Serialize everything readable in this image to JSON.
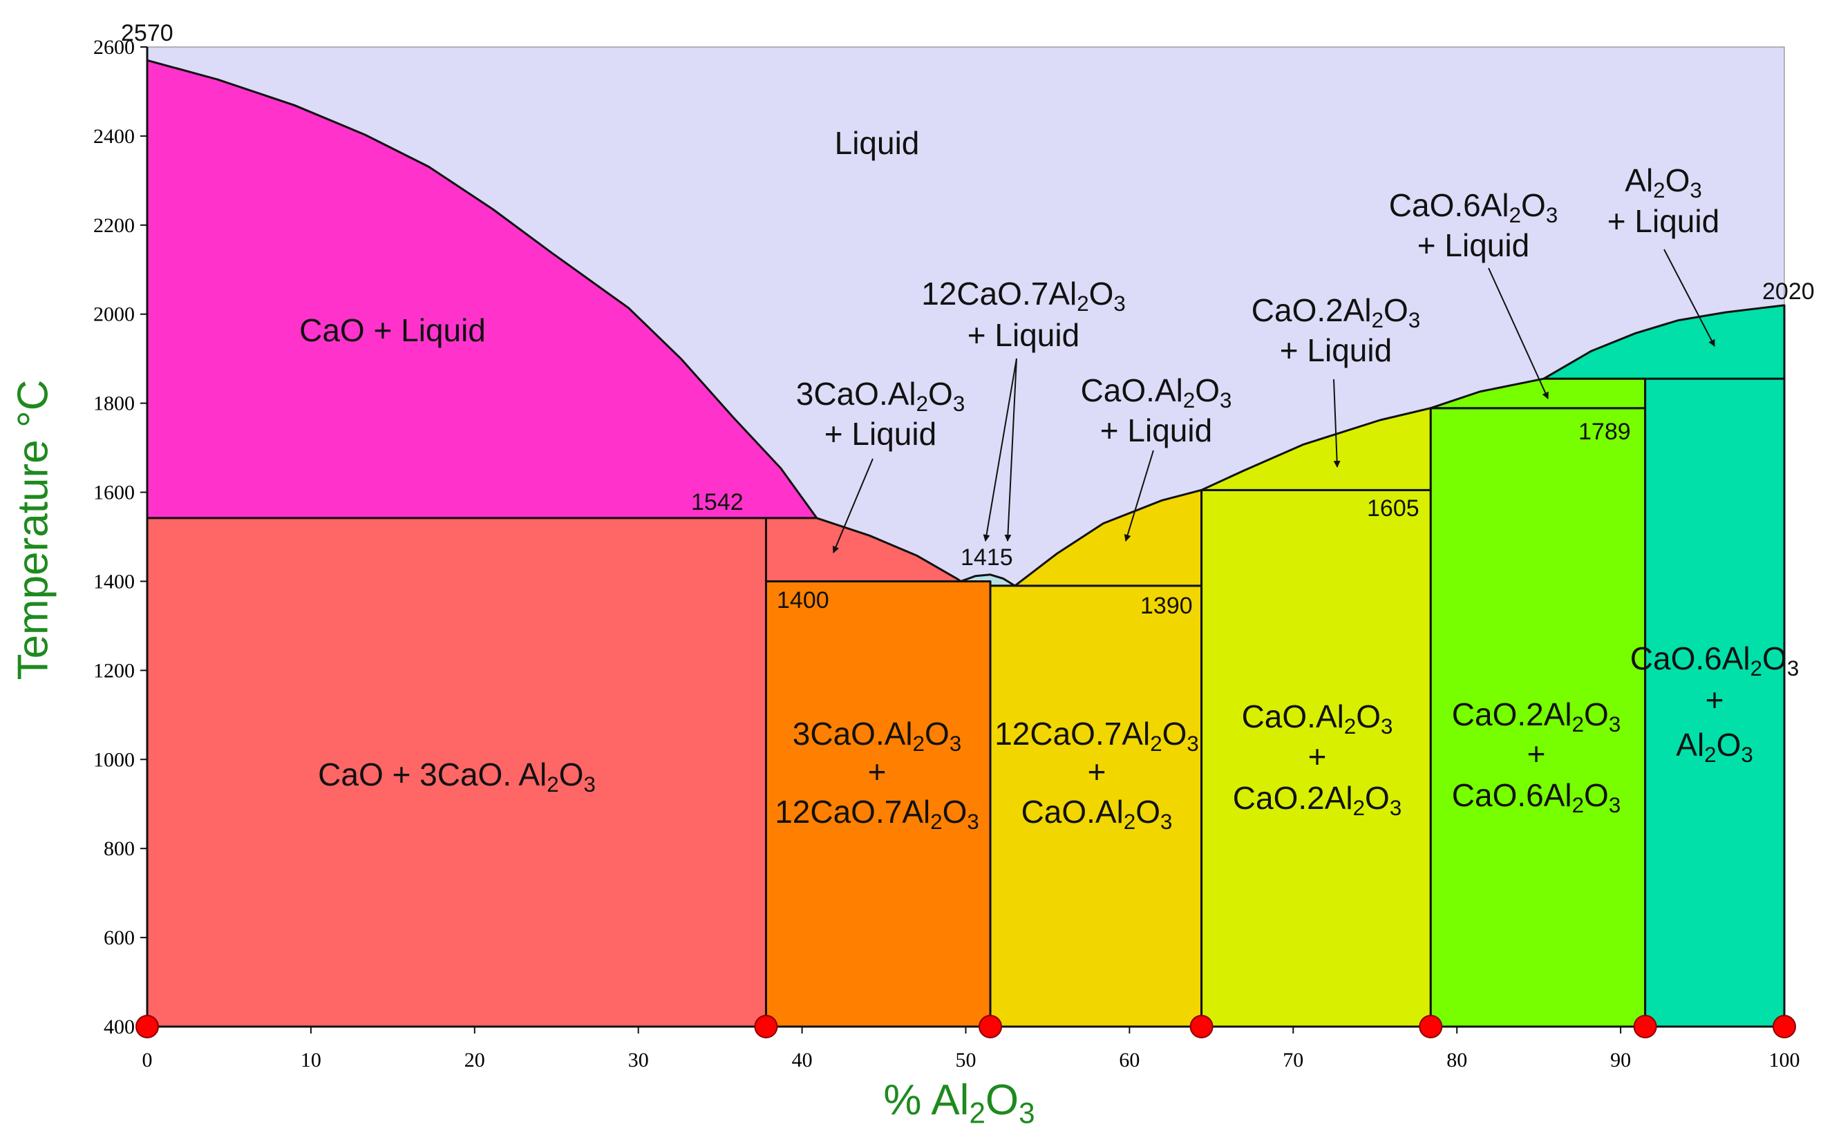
{
  "chart_data": {
    "type": "area",
    "title": "",
    "xlabel": "% Al2O3",
    "ylabel": "Temperature °C",
    "xlim": [
      0,
      100
    ],
    "ylim": [
      400,
      2600
    ],
    "xticks": [
      0,
      10,
      20,
      30,
      40,
      50,
      60,
      70,
      80,
      90,
      100
    ],
    "yticks": [
      400,
      600,
      800,
      1000,
      1200,
      1400,
      1600,
      1800,
      2000,
      2200,
      2400,
      2600
    ],
    "colors": {
      "liquid": "#dcdcf8",
      "cao_liquid": "#ff33cc",
      "cao_c3a": "#ff6666",
      "c3a_c12a7": "#ff8000",
      "c12a7_liquid": "#b8e0e8",
      "c12a7_ca": "#f2d600",
      "ca_ca2": "#d8f000",
      "ca2_ca6": "#77ff00",
      "ca6_al2o3": "#00e0a8",
      "marker": "#ff0000",
      "axis_title": "#1e8a1e"
    },
    "regions": [
      {
        "id": "cao_liquid",
        "color_key": "cao_liquid",
        "points": [
          [
            0,
            2570
          ],
          [
            4.3,
            2527
          ],
          [
            9,
            2469
          ],
          [
            13.3,
            2403
          ],
          [
            17.2,
            2331
          ],
          [
            21.1,
            2236
          ],
          [
            24.7,
            2138
          ],
          [
            29.4,
            2014
          ],
          [
            32.6,
            1900
          ],
          [
            35.8,
            1768
          ],
          [
            38.7,
            1654
          ],
          [
            40.9,
            1542
          ],
          [
            0,
            1542
          ]
        ]
      },
      {
        "id": "cao_c3a",
        "color_key": "cao_c3a",
        "points": [
          [
            0,
            1542
          ],
          [
            37.8,
            1542
          ],
          [
            37.8,
            400
          ],
          [
            0,
            400
          ]
        ]
      },
      {
        "id": "c3a_liquid",
        "color_key": "cao_c3a",
        "points": [
          [
            37.8,
            1542
          ],
          [
            40.9,
            1542
          ],
          [
            44.1,
            1503
          ],
          [
            47,
            1458
          ],
          [
            49.5,
            1405
          ],
          [
            49.7,
            1400
          ],
          [
            37.8,
            1400
          ]
        ]
      },
      {
        "id": "c3a_c12a7",
        "color_key": "c3a_c12a7",
        "points": [
          [
            37.8,
            1400
          ],
          [
            51.5,
            1400
          ],
          [
            51.5,
            400
          ],
          [
            37.8,
            400
          ]
        ]
      },
      {
        "id": "c12a7_liquid",
        "color_key": "c12a7_liquid",
        "points": [
          [
            49.7,
            1400
          ],
          [
            50.6,
            1412
          ],
          [
            51.5,
            1415
          ],
          [
            52.3,
            1406
          ],
          [
            53,
            1390
          ],
          [
            51.5,
            1390
          ],
          [
            51.5,
            1400
          ]
        ]
      },
      {
        "id": "c12a7_ca",
        "color_key": "c12a7_ca",
        "points": [
          [
            51.5,
            1390
          ],
          [
            64.4,
            1390
          ],
          [
            64.4,
            400
          ],
          [
            51.5,
            400
          ]
        ]
      },
      {
        "id": "ca_liquid",
        "color_key": "c12a7_ca",
        "points": [
          [
            53,
            1390
          ],
          [
            55.6,
            1463
          ],
          [
            58.4,
            1530
          ],
          [
            62,
            1582
          ],
          [
            64.4,
            1605
          ],
          [
            64.4,
            1390
          ]
        ]
      },
      {
        "id": "ca_ca2",
        "color_key": "ca_ca2",
        "points": [
          [
            64.4,
            1605
          ],
          [
            78.4,
            1605
          ],
          [
            78.4,
            400
          ],
          [
            64.4,
            400
          ]
        ]
      },
      {
        "id": "ca2_liquid",
        "color_key": "ca_ca2",
        "points": [
          [
            64.4,
            1605
          ],
          [
            67,
            1649
          ],
          [
            70.6,
            1707
          ],
          [
            75.3,
            1762
          ],
          [
            78.4,
            1789
          ],
          [
            78.4,
            1605
          ]
        ]
      },
      {
        "id": "ca2_ca6",
        "color_key": "ca2_ca6",
        "points": [
          [
            78.4,
            1789
          ],
          [
            91.5,
            1789
          ],
          [
            91.5,
            400
          ],
          [
            78.4,
            400
          ]
        ]
      },
      {
        "id": "ca6_liquid",
        "color_key": "ca2_ca6",
        "points": [
          [
            78.4,
            1789
          ],
          [
            81.4,
            1826
          ],
          [
            85.3,
            1855
          ],
          [
            91.5,
            1855
          ],
          [
            91.5,
            1789
          ]
        ]
      },
      {
        "id": "ca6_al2o3",
        "color_key": "ca6_al2o3",
        "points": [
          [
            91.5,
            1855
          ],
          [
            100,
            1855
          ],
          [
            100,
            400
          ],
          [
            91.5,
            400
          ]
        ]
      },
      {
        "id": "al2o3_liquid",
        "color_key": "ca6_al2o3",
        "points": [
          [
            85.3,
            1855
          ],
          [
            88.2,
            1917
          ],
          [
            90.9,
            1957
          ],
          [
            93.5,
            1986
          ],
          [
            96.4,
            2004
          ],
          [
            100,
            2020
          ],
          [
            100,
            1855
          ]
        ]
      }
    ],
    "invariant_points": [
      0,
      37.8,
      51.5,
      64.4,
      78.4,
      91.5,
      100
    ],
    "region_labels": {
      "liquid": [
        "Liquid"
      ],
      "cao_liquid": [
        "CaO + Liquid"
      ],
      "c3a_liquid": [
        "3CaO.Al2O3",
        "+ Liquid"
      ],
      "c12a7_liquid": [
        "12CaO.7Al2O3",
        "+ Liquid"
      ],
      "ca_liquid": [
        "CaO.Al2O3",
        "+ Liquid"
      ],
      "ca2_liquid": [
        "CaO.2Al2O3",
        "+ Liquid"
      ],
      "ca6_liquid": [
        "CaO.6Al2O3",
        "+ Liquid"
      ],
      "al2o3_liquid": [
        "Al2O3",
        "+ Liquid"
      ],
      "cao_c3a": [
        "CaO + 3CaO. Al2O3"
      ],
      "c3a_c12a7": [
        "3CaO.Al2O3",
        "+",
        "12CaO.7Al2O3"
      ],
      "c12a7_ca": [
        "12CaO.7Al2O3",
        "+",
        "CaO.Al2O3"
      ],
      "ca_ca2": [
        "CaO.Al2O3",
        "+",
        "CaO.2Al2O3"
      ],
      "ca2_ca6": [
        "CaO.2Al2O3",
        "+",
        "CaO.6Al2O3"
      ],
      "ca6_al2o3": [
        "CaO.6Al2O3",
        "+",
        "Al2O3"
      ]
    },
    "temperature_annotations": {
      "cao_melting": "2570",
      "c3a_peritectic": "1542",
      "eutectic_1": "1400",
      "c12a7_melting": "1415",
      "eutectic_2": "1390",
      "ca_melting": "1605",
      "ca2_peritectic": "1789",
      "al2o3_melting": "2020"
    }
  }
}
